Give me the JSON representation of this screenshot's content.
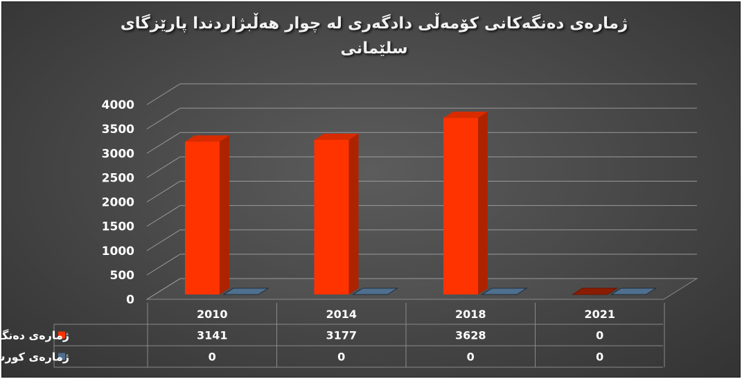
{
  "chart_data": {
    "type": "bar",
    "title": "ژمارەی دەنگەکانی  کۆمەڵی دادگەری لە چوار هەڵبژاردندا پارێزگای سلێمانی",
    "categories": [
      "2010",
      "2014",
      "2018",
      "2021"
    ],
    "series": [
      {
        "name": "ژمارەی دەنگ",
        "values": [
          3141,
          3177,
          3628,
          0
        ],
        "color": "#ff3300",
        "value_labels": [
          "3141",
          "3177",
          "3628",
          "0"
        ]
      },
      {
        "name": "ژمارەی کورسی",
        "values": [
          0,
          0,
          0,
          0
        ],
        "color": "#4f6f8f",
        "value_labels": [
          "0",
          "0",
          "0",
          "0"
        ]
      }
    ],
    "ylim": [
      0,
      4000
    ],
    "yticks": [
      0,
      500,
      1000,
      1500,
      2000,
      2500,
      3000,
      3500,
      4000
    ],
    "ytick_labels": [
      "0",
      "500",
      "1000",
      "1500",
      "2000",
      "2500",
      "3000",
      "3500",
      "4000"
    ],
    "style": "3d-column",
    "grid": true,
    "legend": "data-table",
    "background": "#4a4a4a"
  }
}
